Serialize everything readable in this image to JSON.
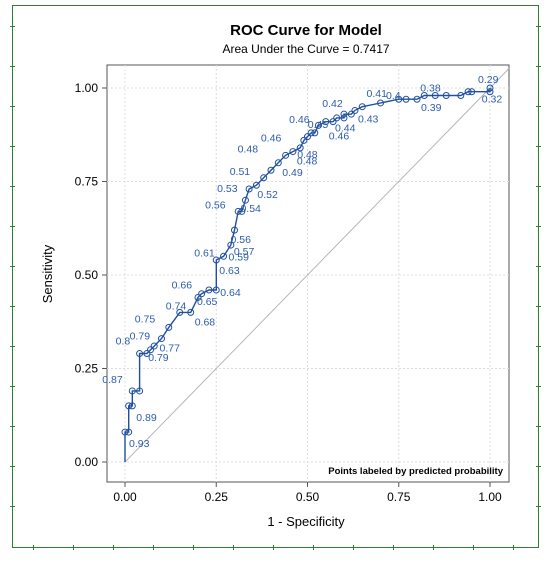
{
  "chart_data": {
    "type": "line",
    "title": "ROC Curve for Model",
    "subtitle": "Area Under the Curve = 0.7417",
    "xlabel": "1 - Specificity",
    "ylabel": "Sensitivity",
    "xlim": [
      0,
      1
    ],
    "ylim": [
      0,
      1
    ],
    "xticks": [
      "0.00",
      "0.25",
      "0.50",
      "0.75",
      "1.00"
    ],
    "yticks": [
      "0.00",
      "0.25",
      "0.50",
      "0.75",
      "1.00"
    ],
    "grid": true,
    "note": "Points labeled by predicted probability",
    "series": [
      {
        "x": [
          0.0,
          0.0,
          0.01,
          0.01,
          0.02,
          0.02,
          0.04,
          0.04,
          0.06,
          0.07,
          0.08,
          0.1,
          0.12,
          0.15,
          0.18,
          0.2,
          0.21,
          0.23,
          0.25,
          0.25,
          0.27,
          0.29,
          0.3,
          0.31,
          0.32,
          0.33,
          0.34,
          0.36,
          0.38,
          0.4,
          0.42,
          0.44,
          0.46,
          0.48,
          0.49,
          0.5,
          0.51,
          0.52,
          0.53,
          0.55,
          0.57,
          0.58,
          0.6,
          0.6,
          0.62,
          0.63,
          0.65,
          0.7,
          0.75,
          0.77,
          0.8,
          0.82,
          0.85,
          0.88,
          0.92,
          0.94,
          0.95,
          1.0,
          1.0
        ],
        "y": [
          0.0,
          0.08,
          0.08,
          0.15,
          0.15,
          0.19,
          0.19,
          0.29,
          0.29,
          0.3,
          0.31,
          0.33,
          0.36,
          0.4,
          0.4,
          0.44,
          0.45,
          0.46,
          0.46,
          0.54,
          0.55,
          0.58,
          0.62,
          0.67,
          0.67,
          0.7,
          0.73,
          0.74,
          0.76,
          0.78,
          0.8,
          0.82,
          0.83,
          0.84,
          0.86,
          0.87,
          0.88,
          0.88,
          0.9,
          0.91,
          0.91,
          0.92,
          0.92,
          0.93,
          0.93,
          0.94,
          0.95,
          0.96,
          0.97,
          0.97,
          0.97,
          0.98,
          0.98,
          0.98,
          0.98,
          0.99,
          0.99,
          0.99,
          1.0
        ]
      }
    ],
    "point_labels": [
      {
        "text": "0.93",
        "x": 0.0,
        "y": 0.08,
        "dx": 4,
        "dy": 15
      },
      {
        "text": "0.89",
        "x": 0.02,
        "y": 0.15,
        "dx": 4,
        "dy": 15
      },
      {
        "text": "0.87",
        "x": 0.02,
        "y": 0.19,
        "dx": -30,
        "dy": -8
      },
      {
        "text": "0.8",
        "x": 0.04,
        "y": 0.29,
        "dx": -24,
        "dy": -9
      },
      {
        "text": "0.79",
        "x": 0.04,
        "y": 0.29,
        "dx": -10,
        "dy": -14
      },
      {
        "text": "0.79",
        "x": 0.08,
        "y": 0.31,
        "dx": -6,
        "dy": 15
      },
      {
        "text": "0.77",
        "x": 0.1,
        "y": 0.33,
        "dx": -2,
        "dy": 13
      },
      {
        "text": "0.75",
        "x": 0.12,
        "y": 0.36,
        "dx": -34,
        "dy": -5
      },
      {
        "text": "0.74",
        "x": 0.15,
        "y": 0.4,
        "dx": -14,
        "dy": -3
      },
      {
        "text": "0.68",
        "x": 0.18,
        "y": 0.4,
        "dx": 4,
        "dy": 13
      },
      {
        "text": "0.66",
        "x": 0.21,
        "y": 0.45,
        "dx": -30,
        "dy": -5
      },
      {
        "text": "0.65",
        "x": 0.23,
        "y": 0.46,
        "dx": -12,
        "dy": 15
      },
      {
        "text": "0.64",
        "x": 0.25,
        "y": 0.46,
        "dx": 4,
        "dy": 6
      },
      {
        "text": "0.63",
        "x": 0.25,
        "y": 0.54,
        "dx": 3,
        "dy": 14
      },
      {
        "text": "0.61",
        "x": 0.25,
        "y": 0.55,
        "dx": -22,
        "dy": 0
      },
      {
        "text": "0.59",
        "x": 0.27,
        "y": 0.55,
        "dx": 5,
        "dy": 4
      },
      {
        "text": "0.57",
        "x": 0.29,
        "y": 0.58,
        "dx": 3,
        "dy": 10
      },
      {
        "text": "0.56",
        "x": 0.3,
        "y": 0.62,
        "dx": -4,
        "dy": 13
      },
      {
        "text": "0.56",
        "x": 0.31,
        "y": 0.67,
        "dx": -33,
        "dy": -3
      },
      {
        "text": "0.54",
        "x": 0.33,
        "y": 0.7,
        "dx": -5,
        "dy": 12
      },
      {
        "text": "0.53",
        "x": 0.34,
        "y": 0.73,
        "dx": -32,
        "dy": 3
      },
      {
        "text": "0.52",
        "x": 0.36,
        "y": 0.74,
        "dx": 1,
        "dy": 13
      },
      {
        "text": "0.51",
        "x": 0.38,
        "y": 0.76,
        "dx": -34,
        "dy": -3
      },
      {
        "text": "0.49",
        "x": 0.42,
        "y": 0.8,
        "dx": 4,
        "dy": 13
      },
      {
        "text": "0.48",
        "x": 0.44,
        "y": 0.82,
        "dx": -48,
        "dy": -3
      },
      {
        "text": "0.48",
        "x": 0.46,
        "y": 0.83,
        "dx": 4,
        "dy": 13
      },
      {
        "text": "0.48",
        "x": 0.48,
        "y": 0.84,
        "dx": -3,
        "dy": 10
      },
      {
        "text": "0.46",
        "x": 0.49,
        "y": 0.86,
        "dx": -43,
        "dy": 1
      },
      {
        "text": "0.46",
        "x": 0.51,
        "y": 0.88,
        "dx": -22,
        "dy": -10
      },
      {
        "text": "0.45",
        "x": 0.52,
        "y": 0.88,
        "dx": -7,
        "dy": -5
      },
      {
        "text": "0.46",
        "x": 0.55,
        "y": 0.91,
        "dx": 3,
        "dy": 18
      },
      {
        "text": "0.44",
        "x": 0.57,
        "y": 0.91,
        "dx": 2,
        "dy": 10
      },
      {
        "text": "0.43",
        "x": 0.63,
        "y": 0.94,
        "dx": 3,
        "dy": 12
      },
      {
        "text": "0.42",
        "x": 0.62,
        "y": 0.93,
        "dx": -29,
        "dy": -7
      },
      {
        "text": "0.41",
        "x": 0.7,
        "y": 0.96,
        "dx": -14,
        "dy": -6
      },
      {
        "text": "0.4",
        "x": 0.77,
        "y": 0.97,
        "dx": -20,
        "dy": 0
      },
      {
        "text": "0.39",
        "x": 0.8,
        "y": 0.97,
        "dx": 4,
        "dy": 12
      },
      {
        "text": "0.38",
        "x": 0.82,
        "y": 0.98,
        "dx": -4,
        "dy": -4
      },
      {
        "text": "0.32",
        "x": 0.95,
        "y": 0.99,
        "dx": 10,
        "dy": 11
      },
      {
        "text": "0.29",
        "x": 1.0,
        "y": 1.0,
        "dx": -12,
        "dy": -5
      }
    ]
  },
  "colors": {
    "curve": "#1f4f9e",
    "label": "#2b5cad",
    "diagonal": "#b5b5b5",
    "grid": "#dcdcdc",
    "axis": "#555555",
    "frame": "#2e7d32"
  }
}
